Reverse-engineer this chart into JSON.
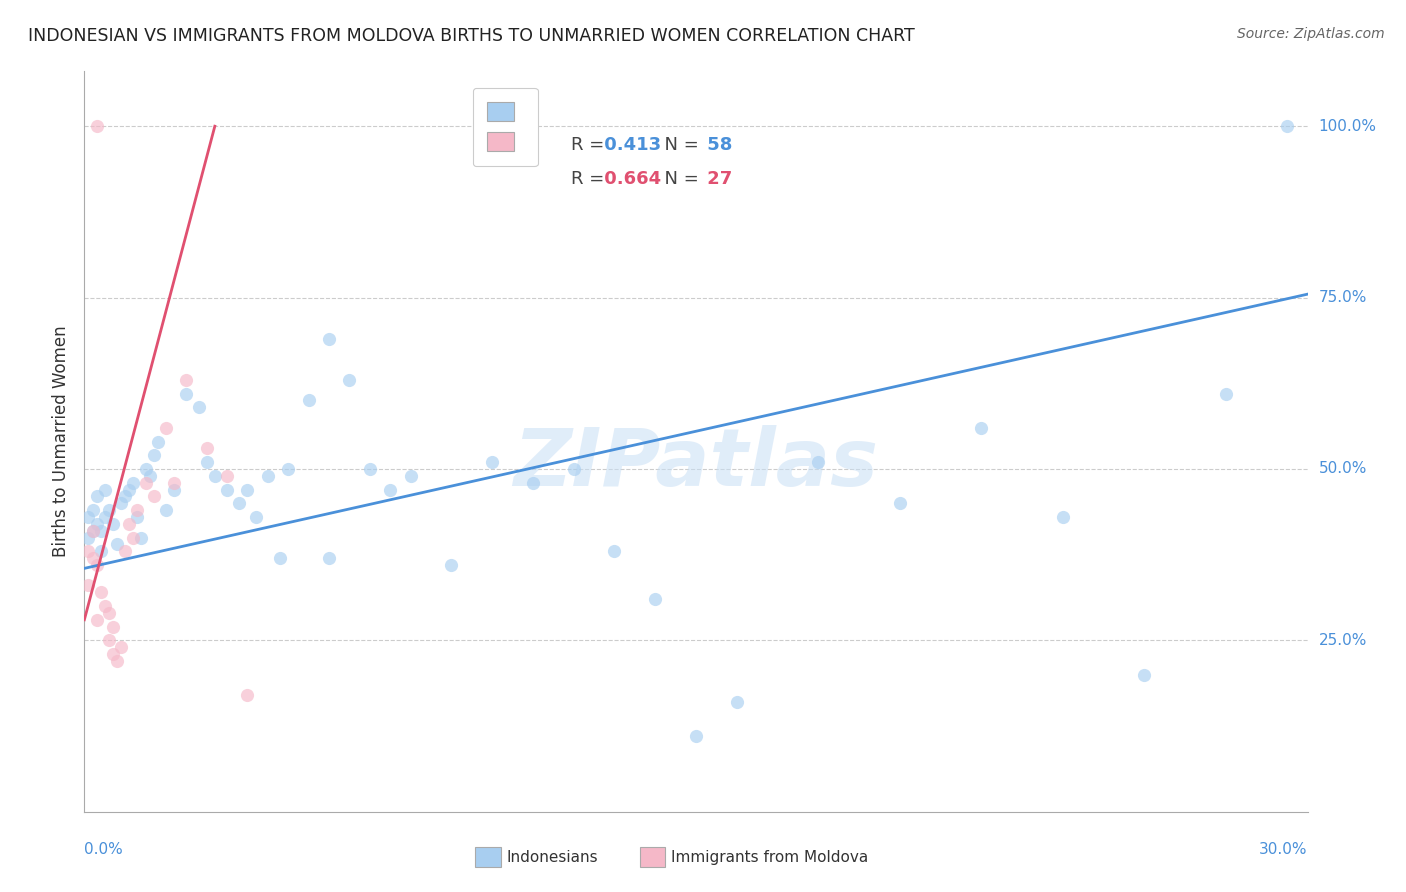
{
  "title": "INDONESIAN VS IMMIGRANTS FROM MOLDOVA BIRTHS TO UNMARRIED WOMEN CORRELATION CHART",
  "source": "Source: ZipAtlas.com",
  "ylabel": "Births to Unmarried Women",
  "xlim": [
    0.0,
    0.3
  ],
  "ylim": [
    0.0,
    1.08
  ],
  "ytick_labels": [
    "25.0%",
    "50.0%",
    "75.0%",
    "100.0%"
  ],
  "ytick_values": [
    0.25,
    0.5,
    0.75,
    1.0
  ],
  "watermark": "ZIPatlas",
  "indonesian_label": "Indonesians",
  "moldova_label": "Immigrants from Moldova",
  "indonesian_color": "#a8cef0",
  "moldova_color": "#f5b8c8",
  "indonesian_line_color": "#4a90d9",
  "moldova_line_color": "#e05070",
  "scatter_alpha": 0.65,
  "scatter_size": 90,
  "legend_r1": "R = ",
  "legend_v1": "0.413",
  "legend_n1": "N = ",
  "legend_nv1": "58",
  "legend_r2": "R = ",
  "legend_v2": "0.664",
  "legend_n2": "N = ",
  "legend_nv2": "27",
  "ind_line_x0": 0.0,
  "ind_line_x1": 0.3,
  "ind_line_y0": 0.355,
  "ind_line_y1": 0.755,
  "mol_line_x0": 0.0,
  "mol_line_x1": 0.032,
  "mol_line_y0": 0.28,
  "mol_line_y1": 1.0,
  "indonesian_x": [
    0.001,
    0.001,
    0.002,
    0.002,
    0.003,
    0.003,
    0.004,
    0.004,
    0.005,
    0.005,
    0.006,
    0.007,
    0.008,
    0.009,
    0.01,
    0.011,
    0.012,
    0.013,
    0.014,
    0.015,
    0.016,
    0.017,
    0.018,
    0.02,
    0.022,
    0.025,
    0.028,
    0.03,
    0.032,
    0.035,
    0.038,
    0.04,
    0.042,
    0.045,
    0.048,
    0.05,
    0.055,
    0.06,
    0.065,
    0.07,
    0.075,
    0.08,
    0.09,
    0.1,
    0.11,
    0.12,
    0.13,
    0.14,
    0.16,
    0.18,
    0.2,
    0.22,
    0.24,
    0.26,
    0.28,
    0.06,
    0.295,
    0.15
  ],
  "indonesian_y": [
    0.4,
    0.43,
    0.41,
    0.44,
    0.42,
    0.46,
    0.38,
    0.41,
    0.43,
    0.47,
    0.44,
    0.42,
    0.39,
    0.45,
    0.46,
    0.47,
    0.48,
    0.43,
    0.4,
    0.5,
    0.49,
    0.52,
    0.54,
    0.44,
    0.47,
    0.61,
    0.59,
    0.51,
    0.49,
    0.47,
    0.45,
    0.47,
    0.43,
    0.49,
    0.37,
    0.5,
    0.6,
    0.69,
    0.63,
    0.5,
    0.47,
    0.49,
    0.36,
    0.51,
    0.48,
    0.5,
    0.38,
    0.31,
    0.16,
    0.51,
    0.45,
    0.56,
    0.43,
    0.2,
    0.61,
    0.37,
    1.0,
    0.11
  ],
  "moldova_x": [
    0.001,
    0.001,
    0.002,
    0.002,
    0.003,
    0.003,
    0.004,
    0.005,
    0.006,
    0.006,
    0.007,
    0.007,
    0.008,
    0.009,
    0.01,
    0.011,
    0.012,
    0.013,
    0.015,
    0.017,
    0.02,
    0.022,
    0.025,
    0.03,
    0.035,
    0.04,
    0.003
  ],
  "moldova_y": [
    0.38,
    0.33,
    0.37,
    0.41,
    0.36,
    0.28,
    0.32,
    0.3,
    0.25,
    0.29,
    0.23,
    0.27,
    0.22,
    0.24,
    0.38,
    0.42,
    0.4,
    0.44,
    0.48,
    0.46,
    0.56,
    0.48,
    0.63,
    0.53,
    0.49,
    0.17,
    1.0
  ]
}
